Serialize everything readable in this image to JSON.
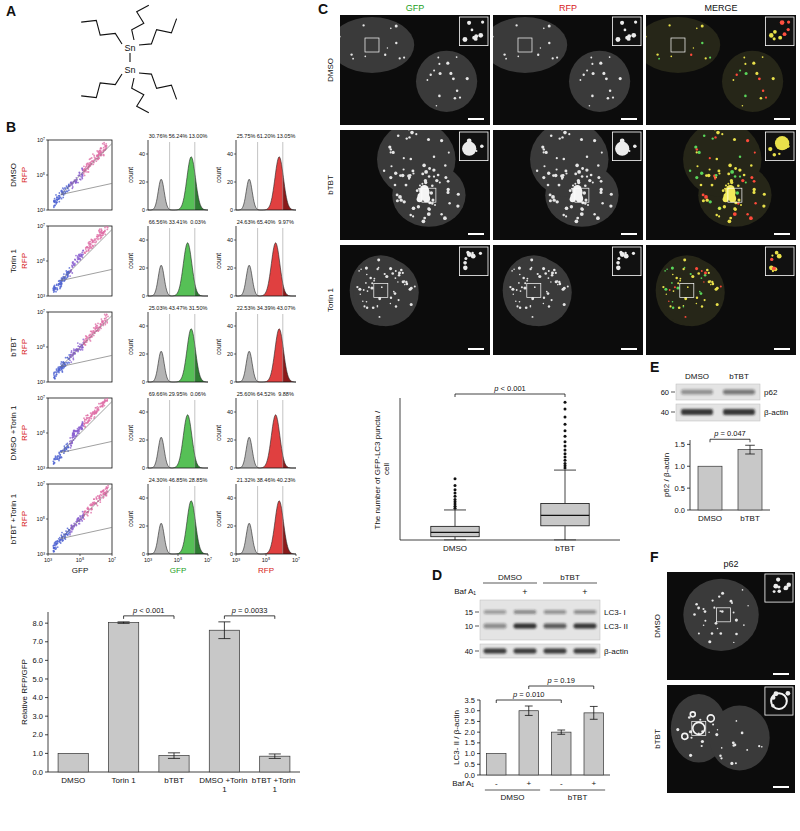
{
  "figure": {
    "panel_letters": [
      "A",
      "B",
      "C",
      "D",
      "E",
      "F"
    ],
    "structure": {
      "atoms": [
        "Sn",
        "Sn"
      ]
    },
    "flow": {
      "rows": [
        {
          "label": "DMSO",
          "gfp_gates": [
            "30.76%",
            "56.24%",
            "13.00%"
          ],
          "rfp_gates": [
            "25.75%",
            "61.20%",
            "13.05%"
          ]
        },
        {
          "label": "Torin 1",
          "gfp_gates": [
            "66.56%",
            "33.41%",
            "0.03%"
          ],
          "rfp_gates": [
            "24.63%",
            "65.40%",
            "9.97%"
          ]
        },
        {
          "label": "bTBT",
          "gfp_gates": [
            "25.03%",
            "43.47%",
            "31.50%"
          ],
          "rfp_gates": [
            "22.53%",
            "34.39%",
            "43.07%"
          ]
        },
        {
          "label": "DMSO +Torin 1",
          "gfp_gates": [
            "69.66%",
            "29.95%",
            "0.06%"
          ],
          "rfp_gates": [
            "25.60%",
            "64.52%",
            "9.88%"
          ]
        },
        {
          "label": "bTBT +Torin 1",
          "gfp_gates": [
            "24.30%",
            "46.85%",
            "28.85%"
          ],
          "rfp_gates": [
            "21.32%",
            "38.46%",
            "40.23%"
          ]
        }
      ],
      "scatter_x_title": "GFP",
      "scatter_y_title": "RFP",
      "hist_titles": [
        "GFP",
        "RFP"
      ],
      "hist_y_title": "count",
      "log": true,
      "xlim": [
        1000,
        10000000
      ],
      "log_ticks": [
        {
          "value": 1000,
          "label": "10³"
        },
        {
          "value": 100000,
          "label": "10⁵"
        },
        {
          "value": 10000000,
          "label": "10⁷"
        }
      ],
      "count_lim": [
        0,
        50
      ],
      "count_ticks": [
        0,
        20,
        40
      ]
    },
    "microscopy_c": {
      "columns": [
        "GFP",
        "RFP",
        "MERGE"
      ],
      "rows": [
        "DMSO",
        "bTBT",
        "Torin 1"
      ]
    },
    "blot_d": {
      "groups": [
        "DMSO",
        "bTBT"
      ],
      "treatment": "Baf A₁",
      "lanes": [
        null,
        "+",
        null,
        "+"
      ],
      "markers": [
        15,
        10,
        40
      ],
      "bands": [
        "LC3- I",
        "LC3- II",
        "β-actin"
      ]
    },
    "blot_e": {
      "groups": [
        "DMSO",
        "bTBT"
      ],
      "markers": [
        60,
        40
      ],
      "bands": [
        "p62",
        "β-actin"
      ]
    },
    "microscopy_f": {
      "title": "p62",
      "rows": [
        "DMSO",
        "bTBT"
      ]
    }
  },
  "chart_data": [
    {
      "type": "bar",
      "y_label": "Relative RFP/GFP",
      "categories": [
        "DMSO",
        "Torin 1",
        "bTBT",
        "DMSO +Torin 1",
        "bTBT +Torin 1"
      ],
      "values": [
        1.0,
        8.03,
        0.88,
        7.62,
        0.85
      ],
      "errors": [
        0,
        0.04,
        0.15,
        0.45,
        0.12
      ],
      "color": "#c8c8c8",
      "ylim": [
        0,
        8.6
      ],
      "yticks": [
        {
          "value": 0,
          "label": "0.0"
        },
        {
          "value": 1,
          "label": "1.0"
        },
        {
          "value": 2,
          "label": "2.0"
        },
        {
          "value": 3,
          "label": "3.0"
        },
        {
          "value": 4,
          "label": "4.0"
        },
        {
          "value": 5,
          "label": "5.0"
        },
        {
          "value": 6,
          "label": "6.0"
        },
        {
          "value": 7,
          "label": "7.0"
        },
        {
          "value": 8,
          "label": "8.0"
        }
      ],
      "annotations": [
        {
          "label": "p < 0.001",
          "between": [
            1,
            2
          ]
        },
        {
          "label": "p = 0.0033",
          "between": [
            3,
            4
          ]
        }
      ]
    },
    {
      "type": "box",
      "y_label": "The number of GFP-LC3 puncta / cell",
      "categories": [
        "DMSO",
        "bTBT"
      ],
      "whisker_low": [
        0,
        0
      ],
      "q1": [
        6,
        26
      ],
      "median": [
        14,
        45
      ],
      "q3": [
        25,
        67
      ],
      "whisker_high": [
        55,
        128
      ],
      "outliers": [
        [
          58,
          62,
          66,
          70,
          74,
          80,
          86,
          92,
          100,
          112
        ],
        [
          132,
          136,
          140,
          146,
          152,
          158,
          165,
          172,
          180,
          190,
          200,
          212,
          225,
          240,
          252
        ]
      ],
      "color": "#c8c8c8",
      "ylim": [
        0,
        260
      ],
      "tick_labels": "x",
      "annotations": [
        {
          "label": "p < 0.001",
          "between": [
            0,
            1
          ]
        }
      ]
    },
    {
      "type": "bar",
      "y_label": "LC3- II / β-actin",
      "x_label": "Baf A₁",
      "categories": [
        "-",
        "+",
        "-",
        "+"
      ],
      "groups": [
        "DMSO",
        "bTBT"
      ],
      "values": [
        1.0,
        3.0,
        2.0,
        2.9
      ],
      "errors": [
        0,
        0.22,
        0.1,
        0.3
      ],
      "color": "#c8c8c8",
      "ylim": [
        0,
        3.5
      ],
      "yticks": [
        {
          "value": 0,
          "label": "0.0"
        },
        {
          "value": 0.5,
          "label": "0.5"
        },
        {
          "value": 1,
          "label": "1.0"
        },
        {
          "value": 1.5,
          "label": "1.5"
        },
        {
          "value": 2,
          "label": "2.0"
        },
        {
          "value": 2.5,
          "label": "2.5"
        },
        {
          "value": 3,
          "label": "3.0"
        },
        {
          "value": 3.5,
          "label": "3.5"
        }
      ],
      "annotations": [
        {
          "label": "p = 0.010",
          "between": [
            0,
            2
          ]
        },
        {
          "label": "p = 0.19",
          "between": [
            1,
            3
          ]
        }
      ]
    },
    {
      "type": "bar",
      "y_label": "p62 / β-actin",
      "categories": [
        "DMSO",
        "bTBT"
      ],
      "values": [
        1.0,
        1.38
      ],
      "errors": [
        0,
        0.1
      ],
      "color": "#c8c8c8",
      "ylim": [
        0,
        1.6
      ],
      "yticks": [
        {
          "value": 0,
          "label": "0.0"
        },
        {
          "value": 0.5,
          "label": "0.5"
        },
        {
          "value": 1,
          "label": "1.0"
        },
        {
          "value": 1.5,
          "label": "1.5"
        }
      ],
      "annotations": [
        {
          "label": "p = 0.047",
          "between": [
            0,
            1
          ]
        }
      ]
    }
  ]
}
